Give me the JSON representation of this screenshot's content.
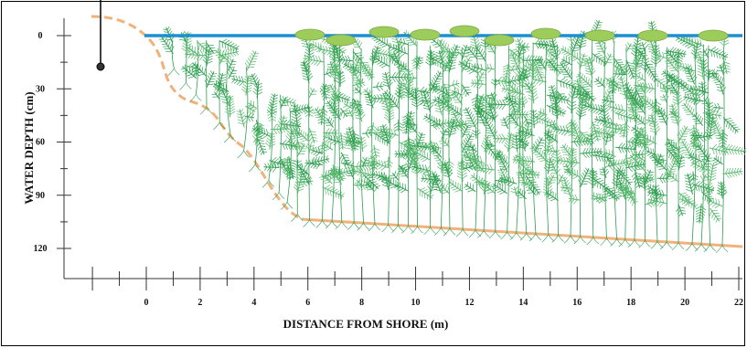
{
  "diagram": {
    "y_axis_title": "WATER DEPTH (cm)",
    "x_axis_title": "DISTANCE FROM SHORE (m)",
    "y_ticks": [
      "0",
      "30",
      "60",
      "90",
      "120"
    ],
    "x_ticks": [
      "0",
      "2",
      "4",
      "6",
      "8",
      "10",
      "12",
      "14",
      "16",
      "18",
      "20",
      "22"
    ],
    "colors": {
      "water_surface": "#1b8fd0",
      "lake_bed": "#f0b27a",
      "shore_slope": "#f0b27a",
      "plant": "#2e9e4f",
      "plant_light": "#58b86e",
      "floating_leaf": "#9ccc5a",
      "axis": "#333333"
    },
    "icons": [
      "leader-line-dot-icon",
      "submerged-plant-icon",
      "floating-leaf-icon"
    ]
  }
}
